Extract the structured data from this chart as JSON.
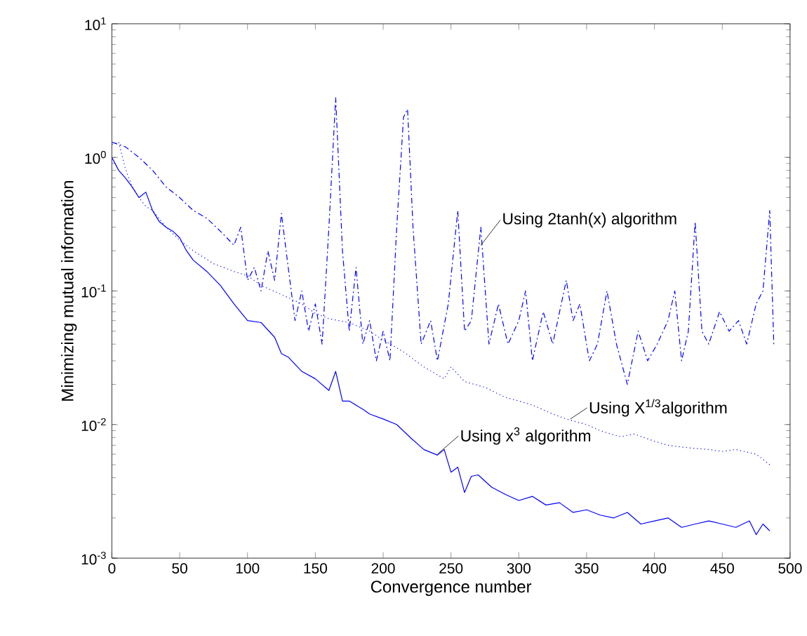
{
  "chart_data": {
    "type": "line",
    "xlabel": "Convergence number",
    "ylabel": "Minimizing  mutual   information",
    "log": "y",
    "grid": false,
    "marker": "none",
    "xlim": [
      0,
      500
    ],
    "xticks": [
      0,
      50,
      100,
      150,
      200,
      250,
      300,
      350,
      400,
      450,
      500
    ],
    "ylim": [
      0.001,
      10
    ],
    "yticks": [
      {
        "value": 0.001,
        "label": "10$^{-3}$"
      },
      {
        "value": 0.01,
        "label": "10$^{-2}$"
      },
      {
        "value": 0.1,
        "label": "10$^{-1}$"
      },
      {
        "value": 1,
        "label": "10$^{0}$"
      },
      {
        "value": 10,
        "label": "10$^{1}$"
      }
    ],
    "series": [
      {
        "color": "#0000ff",
        "line_style": "solid",
        "x": [
          0,
          5,
          10,
          15,
          20,
          25,
          30,
          35,
          40,
          45,
          50,
          55,
          60,
          70,
          80,
          90,
          100,
          110,
          120,
          125,
          130,
          140,
          150,
          160,
          165,
          170,
          175,
          185,
          190,
          200,
          210,
          220,
          230,
          240,
          245,
          250,
          255,
          260,
          265,
          270,
          280,
          290,
          300,
          310,
          320,
          330,
          340,
          350,
          360,
          370,
          380,
          390,
          400,
          410,
          420,
          430,
          440,
          450,
          460,
          470,
          475,
          480,
          485
        ],
        "values": [
          1.0,
          0.8,
          0.7,
          0.6,
          0.5,
          0.55,
          0.4,
          0.33,
          0.3,
          0.28,
          0.25,
          0.2,
          0.17,
          0.14,
          0.11,
          0.08,
          0.06,
          0.058,
          0.045,
          0.034,
          0.032,
          0.025,
          0.022,
          0.018,
          0.025,
          0.015,
          0.015,
          0.013,
          0.012,
          0.011,
          0.01,
          0.008,
          0.0065,
          0.0059,
          0.0065,
          0.0044,
          0.0048,
          0.0031,
          0.0041,
          0.0042,
          0.0034,
          0.003,
          0.0027,
          0.0029,
          0.0025,
          0.0026,
          0.0022,
          0.0023,
          0.0021,
          0.002,
          0.0022,
          0.0018,
          0.0019,
          0.002,
          0.0017,
          0.0018,
          0.0019,
          0.0018,
          0.0017,
          0.0019,
          0.0015,
          0.0018,
          0.0016
        ]
      },
      {
        "color": "#0000ff",
        "line_style": "dotted",
        "x": [
          0,
          5,
          10,
          15,
          20,
          25,
          30,
          40,
          50,
          60,
          75,
          90,
          100,
          110,
          125,
          140,
          150,
          160,
          175,
          190,
          200,
          215,
          230,
          245,
          250,
          260,
          275,
          290,
          300,
          310,
          325,
          335,
          350,
          360,
          375,
          385,
          400,
          410,
          425,
          440,
          450,
          460,
          475,
          480,
          485
        ],
        "values": [
          1.25,
          1.3,
          0.82,
          0.6,
          0.5,
          0.43,
          0.4,
          0.3,
          0.24,
          0.2,
          0.16,
          0.14,
          0.13,
          0.11,
          0.094,
          0.08,
          0.068,
          0.062,
          0.058,
          0.05,
          0.043,
          0.035,
          0.027,
          0.022,
          0.027,
          0.021,
          0.019,
          0.016,
          0.015,
          0.014,
          0.012,
          0.011,
          0.01,
          0.009,
          0.0081,
          0.0085,
          0.0075,
          0.007,
          0.0067,
          0.0065,
          0.0063,
          0.0065,
          0.006,
          0.0055,
          0.005
        ]
      },
      {
        "color": "#0000ff",
        "line_style": "dashdot",
        "x": [
          0,
          10,
          20,
          30,
          40,
          50,
          60,
          70,
          80,
          90,
          95,
          100,
          105,
          110,
          115,
          120,
          125,
          130,
          135,
          140,
          145,
          150,
          155,
          160,
          165,
          170,
          175,
          180,
          185,
          190,
          195,
          200,
          205,
          210,
          215,
          218,
          222,
          228,
          235,
          240,
          248,
          255,
          260,
          265,
          272,
          278,
          285,
          292,
          300,
          305,
          310,
          318,
          325,
          335,
          340,
          345,
          352,
          358,
          365,
          372,
          380,
          388,
          395,
          402,
          410,
          415,
          420,
          425,
          430,
          435,
          440,
          448,
          455,
          462,
          468,
          475,
          480,
          485,
          488
        ],
        "values": [
          1.3,
          1.2,
          1.0,
          0.8,
          0.6,
          0.5,
          0.4,
          0.35,
          0.28,
          0.22,
          0.3,
          0.12,
          0.15,
          0.1,
          0.2,
          0.12,
          0.38,
          0.15,
          0.06,
          0.1,
          0.05,
          0.08,
          0.04,
          0.3,
          2.8,
          0.2,
          0.05,
          0.15,
          0.04,
          0.06,
          0.03,
          0.05,
          0.03,
          0.3,
          2.0,
          2.3,
          0.3,
          0.04,
          0.06,
          0.03,
          0.08,
          0.4,
          0.05,
          0.06,
          0.3,
          0.04,
          0.08,
          0.04,
          0.06,
          0.1,
          0.03,
          0.07,
          0.04,
          0.12,
          0.06,
          0.08,
          0.03,
          0.04,
          0.1,
          0.04,
          0.02,
          0.05,
          0.03,
          0.04,
          0.06,
          0.1,
          0.03,
          0.05,
          0.33,
          0.05,
          0.04,
          0.07,
          0.05,
          0.06,
          0.04,
          0.08,
          0.1,
          0.4,
          0.04
        ]
      }
    ],
    "annotations": [
      {
        "text": "Using 2tanh(x) algorithm",
        "x": 272,
        "y": 0.22
      },
      {
        "text": "Using X$^{1/3}$algorithm",
        "x": 338,
        "y": 0.011
      },
      {
        "text": "Using  x$^{3}$ algorithm",
        "x": 240,
        "y": 0.006
      }
    ]
  }
}
